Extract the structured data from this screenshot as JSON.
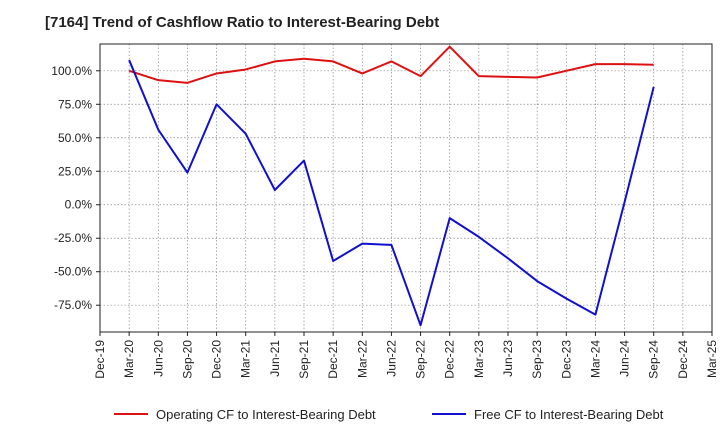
{
  "chart_data": {
    "type": "line",
    "title": "[7164]  Trend of Cashflow Ratio to Interest-Bearing Debt",
    "xlabel": "",
    "ylabel": "",
    "categories": [
      "Dec-19",
      "Mar-20",
      "Jun-20",
      "Sep-20",
      "Dec-20",
      "Mar-21",
      "Jun-21",
      "Sep-21",
      "Dec-21",
      "Mar-22",
      "Jun-22",
      "Sep-22",
      "Dec-22",
      "Mar-23",
      "Jun-23",
      "Sep-23",
      "Dec-23",
      "Mar-24",
      "Jun-24",
      "Sep-24",
      "Dec-24",
      "Mar-25"
    ],
    "ylim": [
      -95,
      120
    ],
    "yticks": [
      100,
      75,
      50,
      25,
      0,
      -25,
      -50,
      -75
    ],
    "ytick_labels": [
      "100.0%",
      "75.0%",
      "50.0%",
      "25.0%",
      "0.0%",
      "-25.0%",
      "-50.0%",
      "-75.0%"
    ],
    "grid": true,
    "legend_position": "bottom",
    "series": [
      {
        "name": "Operating CF to Interest-Bearing Debt",
        "color": "#dd1111",
        "values": [
          null,
          100.0,
          93.0,
          91.0,
          98.0,
          101.0,
          107.0,
          109.0,
          107.0,
          98.0,
          107.0,
          96.0,
          118.0,
          96.0,
          95.5,
          95.0,
          100.0,
          105.0,
          105.0,
          104.5,
          null,
          null
        ]
      },
      {
        "name": "Free CF to Interest-Bearing Debt",
        "color": "#1111cc",
        "values": [
          null,
          108.0,
          56.0,
          24.0,
          75.0,
          53.0,
          11.0,
          33.0,
          -42.0,
          -29.0,
          -30.0,
          -90.0,
          -10.0,
          -24.0,
          -40.0,
          -57.0,
          -70.0,
          -82.0,
          2.0,
          88.0,
          null,
          null
        ]
      }
    ]
  }
}
